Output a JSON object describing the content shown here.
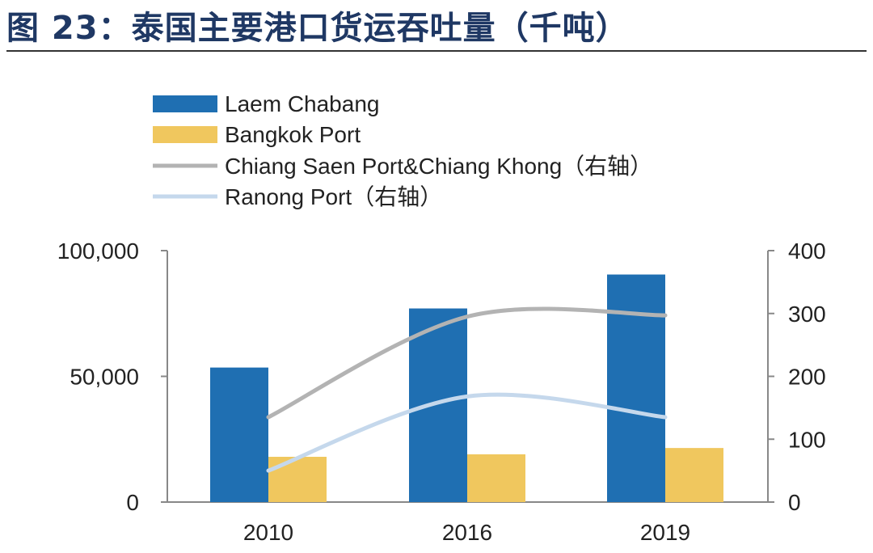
{
  "header": {
    "title": "图 23：泰国主要港口货运吞吐量（千吨）"
  },
  "chart_data": {
    "type": "bar",
    "title": "图 23：泰国主要港口货运吞吐量（千吨）",
    "categories": [
      "2010",
      "2016",
      "2019"
    ],
    "series": [
      {
        "name": "Laem Chabang",
        "kind": "bar",
        "axis": "left",
        "color": "#1f6fb2",
        "values": [
          53500,
          77000,
          90500
        ]
      },
      {
        "name": "Bangkok Port",
        "kind": "bar",
        "axis": "left",
        "color": "#f0c75e",
        "values": [
          18000,
          19000,
          21500
        ]
      },
      {
        "name": "Chiang Saen Port&Chiang Khong（右轴）",
        "kind": "line",
        "axis": "right",
        "color": "#b3b3b3",
        "values": [
          135,
          295,
          297
        ]
      },
      {
        "name": "Ranong Port（右轴）",
        "kind": "line",
        "axis": "right",
        "color": "#c5d8ec",
        "values": [
          50,
          168,
          135
        ]
      }
    ],
    "y_left": {
      "ylim": [
        0,
        100000
      ],
      "ticks": [
        "0",
        "50,000",
        "100,000"
      ]
    },
    "y_right": {
      "ylim": [
        0,
        400
      ],
      "ticks": [
        "0",
        "100",
        "200",
        "300",
        "400"
      ]
    },
    "legend": "top-left",
    "grid": false
  }
}
